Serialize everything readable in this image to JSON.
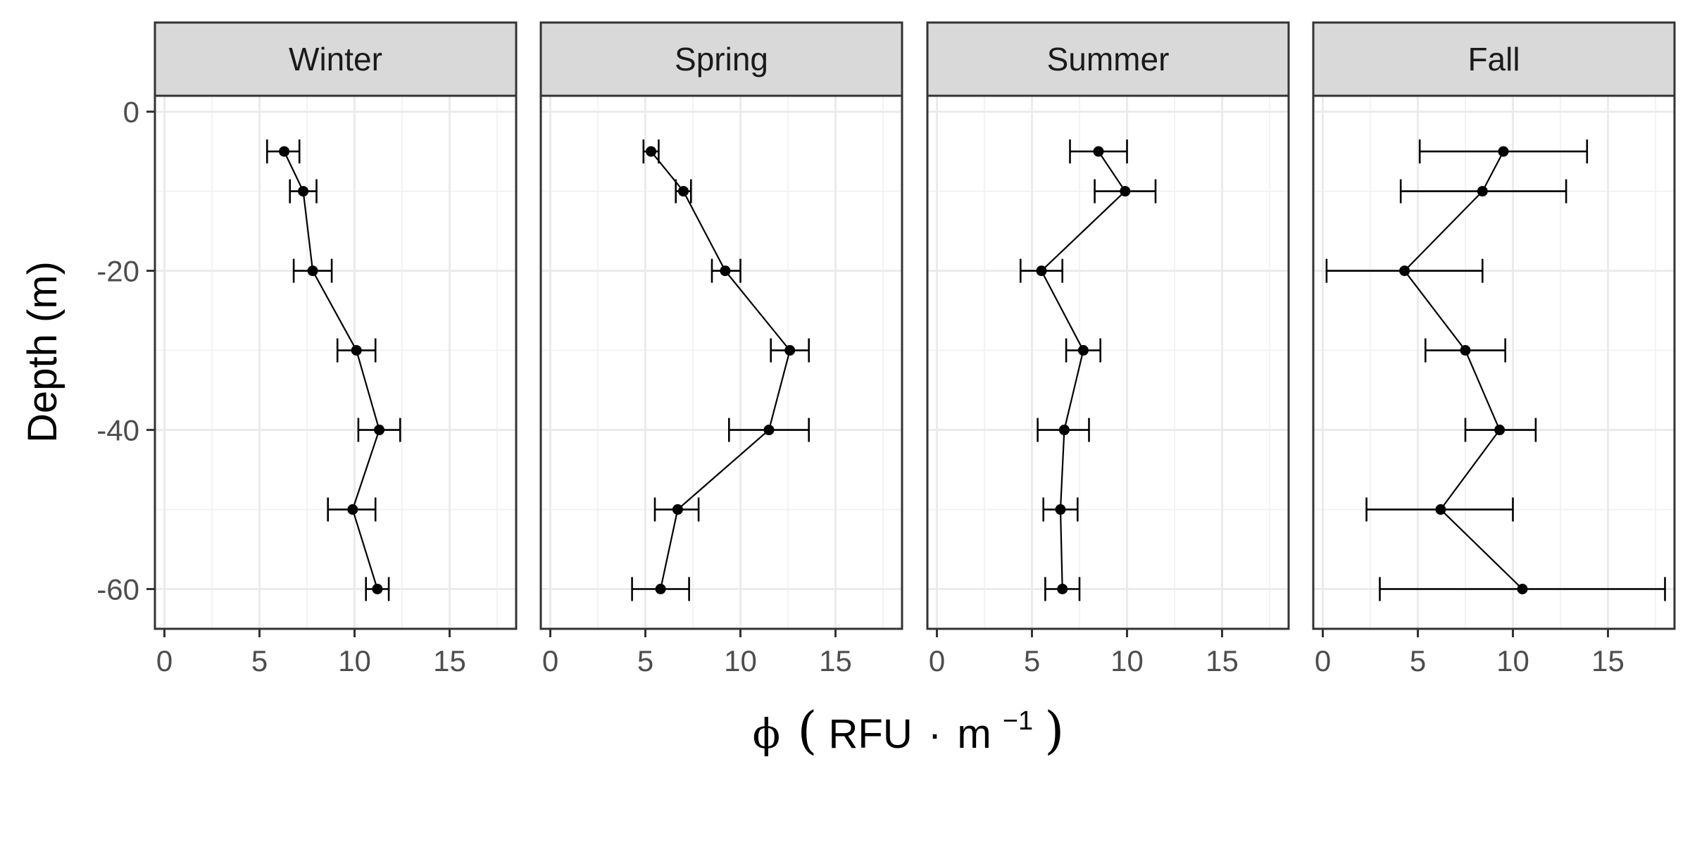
{
  "chart_data": {
    "type": "line",
    "facet_by": "season",
    "xlabel": {
      "symbol": "ϕ",
      "unit": "RFU",
      "dot": "·",
      "power_base": "m",
      "exponent": "−1"
    },
    "ylabel": "Depth (m)",
    "xlim": [
      -0.5,
      18.5
    ],
    "ylim": [
      -65,
      2
    ],
    "x_ticks": [
      0,
      5,
      10,
      15
    ],
    "y_ticks": [
      0,
      -20,
      -40,
      -60
    ],
    "grid": true,
    "legend": "none",
    "panels": [
      {
        "name": "Winter",
        "points": [
          {
            "depth": -5,
            "x": 6.3,
            "xmin": 5.4,
            "xmax": 7.1
          },
          {
            "depth": -10,
            "x": 7.3,
            "xmin": 6.6,
            "xmax": 8.0
          },
          {
            "depth": -20,
            "x": 7.8,
            "xmin": 6.8,
            "xmax": 8.8
          },
          {
            "depth": -30,
            "x": 10.1,
            "xmin": 9.1,
            "xmax": 11.1
          },
          {
            "depth": -40,
            "x": 11.3,
            "xmin": 10.2,
            "xmax": 12.4
          },
          {
            "depth": -50,
            "x": 9.9,
            "xmin": 8.6,
            "xmax": 11.1
          },
          {
            "depth": -60,
            "x": 11.2,
            "xmin": 10.6,
            "xmax": 11.8
          }
        ]
      },
      {
        "name": "Spring",
        "points": [
          {
            "depth": -5,
            "x": 5.3,
            "xmin": 4.9,
            "xmax": 5.7
          },
          {
            "depth": -10,
            "x": 7.0,
            "xmin": 6.6,
            "xmax": 7.4
          },
          {
            "depth": -20,
            "x": 9.2,
            "xmin": 8.5,
            "xmax": 10.0
          },
          {
            "depth": -30,
            "x": 12.6,
            "xmin": 11.6,
            "xmax": 13.6
          },
          {
            "depth": -40,
            "x": 11.5,
            "xmin": 9.4,
            "xmax": 13.6
          },
          {
            "depth": -50,
            "x": 6.7,
            "xmin": 5.5,
            "xmax": 7.8
          },
          {
            "depth": -60,
            "x": 5.8,
            "xmin": 4.3,
            "xmax": 7.3
          }
        ]
      },
      {
        "name": "Summer",
        "points": [
          {
            "depth": -5,
            "x": 8.5,
            "xmin": 7.0,
            "xmax": 10.0
          },
          {
            "depth": -10,
            "x": 9.9,
            "xmin": 8.3,
            "xmax": 11.5
          },
          {
            "depth": -20,
            "x": 5.5,
            "xmin": 4.4,
            "xmax": 6.6
          },
          {
            "depth": -30,
            "x": 7.7,
            "xmin": 6.8,
            "xmax": 8.6
          },
          {
            "depth": -40,
            "x": 6.7,
            "xmin": 5.3,
            "xmax": 8.0
          },
          {
            "depth": -50,
            "x": 6.5,
            "xmin": 5.6,
            "xmax": 7.4
          },
          {
            "depth": -60,
            "x": 6.6,
            "xmin": 5.7,
            "xmax": 7.5
          }
        ]
      },
      {
        "name": "Fall",
        "points": [
          {
            "depth": -5,
            "x": 9.5,
            "xmin": 5.1,
            "xmax": 13.9
          },
          {
            "depth": -10,
            "x": 8.4,
            "xmin": 4.1,
            "xmax": 12.8
          },
          {
            "depth": -20,
            "x": 4.3,
            "xmin": 0.2,
            "xmax": 8.4
          },
          {
            "depth": -30,
            "x": 7.5,
            "xmin": 5.4,
            "xmax": 9.6
          },
          {
            "depth": -40,
            "x": 9.3,
            "xmin": 7.5,
            "xmax": 11.2
          },
          {
            "depth": -50,
            "x": 6.2,
            "xmin": 2.3,
            "xmax": 10.0
          },
          {
            "depth": -60,
            "x": 10.5,
            "xmin": 3.0,
            "xmax": 18.0
          }
        ]
      }
    ]
  }
}
